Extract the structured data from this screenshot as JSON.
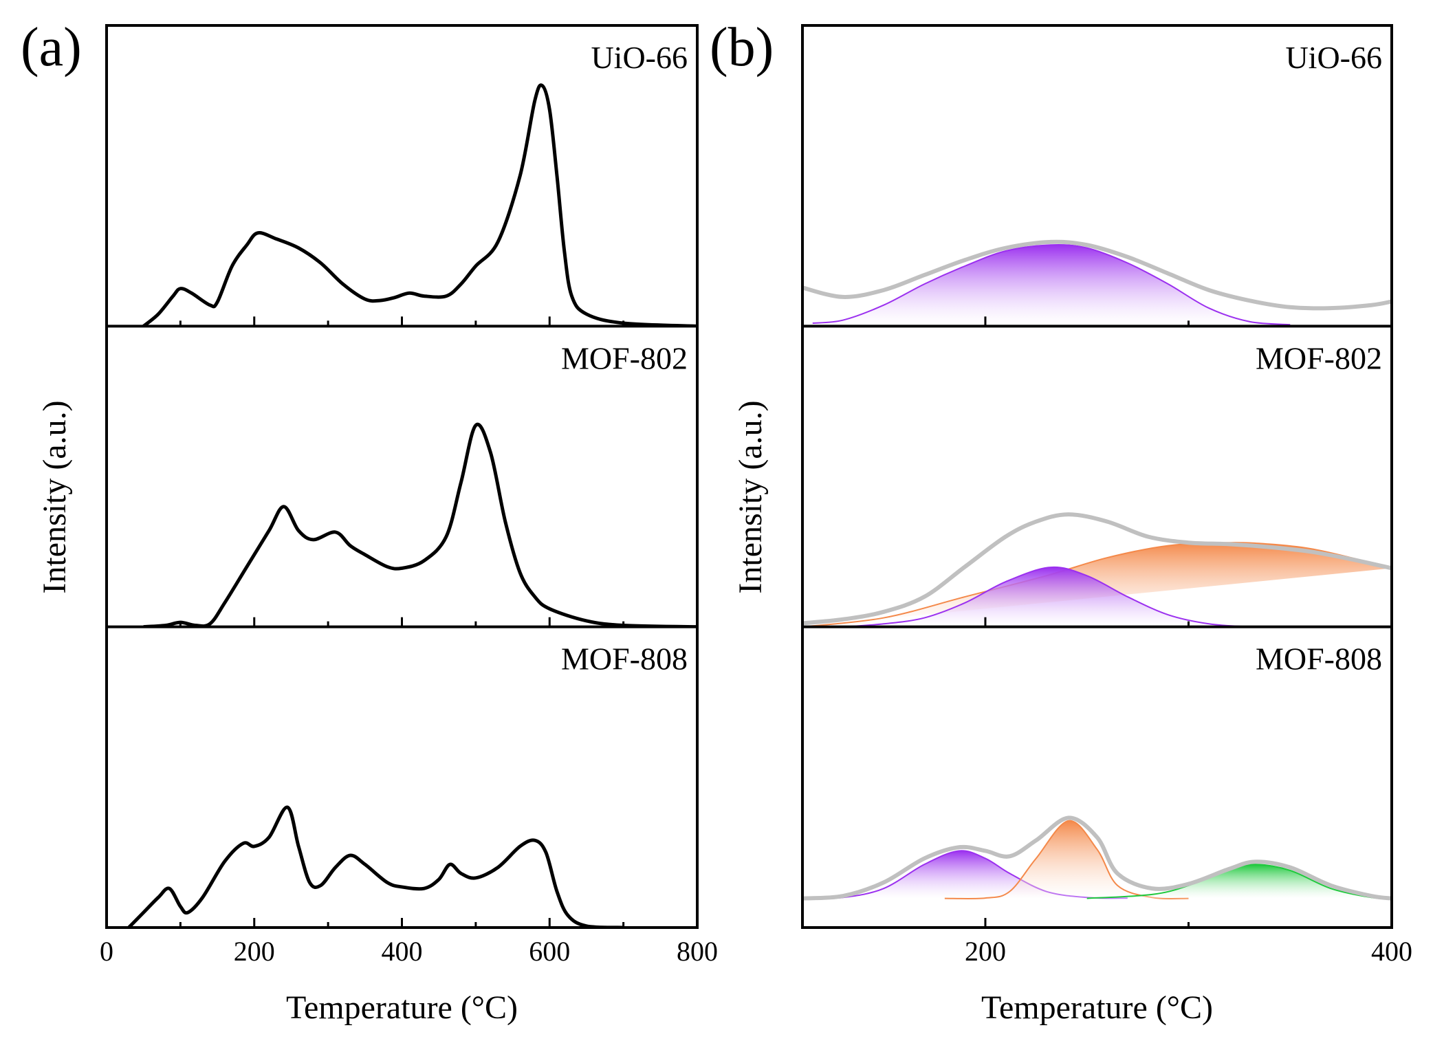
{
  "chart_data": [
    {
      "type": "line",
      "label": "(a)",
      "xlabel": "Temperature (°C)",
      "ylabel": "Intensity (a.u.)",
      "xlim": [
        0,
        800
      ],
      "xticks": [
        0,
        200,
        400,
        600,
        800
      ],
      "xminorticks": [
        100,
        300,
        500,
        700
      ],
      "panels": [
        {
          "label": "UiO-66",
          "ylim": [
            0,
            100
          ],
          "series": [
            {
              "color": "#000000",
              "x": [
                50,
                70,
                90,
                100,
                115,
                140,
                150,
                170,
                190,
                205,
                230,
                260,
                290,
                320,
                350,
                370,
                390,
                410,
                430,
                460,
                480,
                500,
                530,
                560,
                580,
                590,
                600,
                610,
                620,
                630,
                650,
                700,
                800
              ],
              "values": [
                0,
                4,
                10,
                12.5,
                11,
                7,
                8,
                20,
                27,
                31,
                29,
                26,
                21,
                14,
                9,
                8.5,
                9.5,
                11,
                10,
                10,
                14,
                20,
                28,
                50,
                75,
                80,
                72,
                50,
                25,
                10,
                4,
                1,
                0
              ]
            }
          ]
        },
        {
          "label": "MOF-802",
          "ylim": [
            0,
            100
          ],
          "series": [
            {
              "color": "#000000",
              "x": [
                50,
                80,
                100,
                120,
                140,
                160,
                190,
                220,
                240,
                260,
                280,
                310,
                330,
                350,
                380,
                400,
                430,
                460,
                480,
                500,
                520,
                540,
                560,
                580,
                600,
                650,
                700,
                800
              ],
              "values": [
                0,
                0.5,
                1.5,
                0.5,
                1,
                8,
                20,
                32,
                40,
                32,
                29,
                31.5,
                27,
                24,
                20,
                19.5,
                22,
                30,
                48,
                67,
                58,
                35,
                18,
                10,
                6,
                2,
                0.5,
                0
              ]
            }
          ]
        },
        {
          "label": "MOF-808",
          "ylim": [
            0,
            100
          ],
          "series": [
            {
              "color": "#000000",
              "x": [
                30,
                50,
                70,
                85,
                100,
                110,
                130,
                160,
                185,
                200,
                220,
                245,
                260,
                275,
                290,
                310,
                330,
                350,
                380,
                400,
                430,
                450,
                465,
                480,
                500,
                530,
                560,
                580,
                595,
                610,
                625,
                650,
                700
              ],
              "values": [
                0,
                5,
                10,
                13,
                7,
                5,
                10,
                22,
                28,
                27,
                30,
                40,
                27,
                15,
                14,
                20,
                24,
                21,
                15,
                13.5,
                13,
                16,
                21,
                18,
                16.5,
                20,
                27,
                29,
                25,
                12,
                4,
                0.5,
                0
              ]
            }
          ]
        }
      ]
    },
    {
      "type": "line",
      "label": "(b)",
      "xlabel": "Temperature (°C)",
      "ylabel": "Intensity (a.u.)",
      "xlim": [
        110,
        400
      ],
      "xticks": [
        200,
        400
      ],
      "xminorticks": [
        300
      ],
      "panels": [
        {
          "label": "UiO-66",
          "ylim": [
            0,
            100
          ],
          "series": [
            {
              "color": "#9b30ef",
              "fill": true,
              "x": [
                115,
                130,
                150,
                170,
                190,
                210,
                232,
                250,
                270,
                290,
                310,
                330,
                350
              ],
              "values": [
                1,
                2,
                7,
                14,
                20,
                25,
                27,
                26,
                21,
                14,
                6,
                1.5,
                0.5
              ]
            },
            {
              "color": "#c0c0c0",
              "x": [
                110,
                130,
                150,
                170,
                190,
                210,
                232,
                250,
                270,
                290,
                310,
                330,
                350,
                370,
                390,
                400
              ],
              "values": [
                12.8,
                9.7,
                12,
                17,
                22,
                26,
                28,
                27,
                23,
                17.5,
                12,
                8.5,
                6.3,
                6,
                7,
                8.2
              ]
            }
          ]
        },
        {
          "label": "MOF-802",
          "ylim": [
            0,
            100
          ],
          "series": [
            {
              "color": "#f4894a",
              "fill": true,
              "x": [
                110,
                150,
                190,
                230,
                260,
                290,
                320,
                340,
                360,
                380,
                400
              ],
              "values": [
                0,
                3,
                10,
                17,
                23,
                27,
                28,
                27.5,
                26,
                23,
                19.5
              ]
            },
            {
              "color": "#9b30ef",
              "fill": true,
              "x": [
                130,
                150,
                170,
                190,
                210,
                232,
                250,
                270,
                290,
                310,
                330
              ],
              "values": [
                0,
                1,
                3,
                8,
                15,
                19.8,
                17,
                10,
                4,
                1,
                0
              ]
            },
            {
              "color": "#c0c0c0",
              "x": [
                110,
                130,
                150,
                170,
                190,
                210,
                225,
                241,
                260,
                280,
                300,
                320,
                340,
                360,
                380,
                400
              ],
              "values": [
                1.2,
                2.5,
                5,
                10,
                20,
                30,
                35,
                37.4,
                35,
                30,
                28,
                27.5,
                26.5,
                25,
                22.5,
                19.5
              ]
            }
          ]
        },
        {
          "label": "MOF-808",
          "ylim": [
            0,
            100
          ],
          "series": [
            {
              "color": "#9b30ef",
              "fill": true,
              "x": [
                110,
                130,
                150,
                170,
                187,
                200,
                212,
                230,
                250,
                270
              ],
              "values": [
                9.7,
                10,
                13,
                21,
                25.5,
                23,
                18,
                12,
                10,
                9.8
              ]
            },
            {
              "color": "#f4894a",
              "fill": true,
              "x": [
                180,
                200,
                212,
                225,
                241,
                255,
                265,
                282,
                300
              ],
              "values": [
                9.7,
                9.8,
                12,
                23,
                35.5,
                26,
                14,
                10,
                9.7
              ]
            },
            {
              "color": "#1ec83c",
              "fill": true,
              "x": [
                250,
                282,
                300,
                320,
                333,
                350,
                370,
                390,
                400
              ],
              "values": [
                9.7,
                11,
                14,
                19.5,
                21,
                19,
                13,
                10,
                9.7
              ]
            },
            {
              "color": "#c0c0c0",
              "x": [
                110,
                130,
                150,
                170,
                187,
                200,
                212,
                225,
                241,
                255,
                265,
                282,
                300,
                320,
                333,
                350,
                370,
                390,
                400
              ],
              "values": [
                9.7,
                10.5,
                15,
                23,
                26.7,
                25.5,
                23.7,
                29,
                36.5,
                30,
                18,
                13,
                14.5,
                19.5,
                21.9,
                20,
                14,
                10.5,
                9.7
              ]
            }
          ]
        }
      ]
    }
  ]
}
